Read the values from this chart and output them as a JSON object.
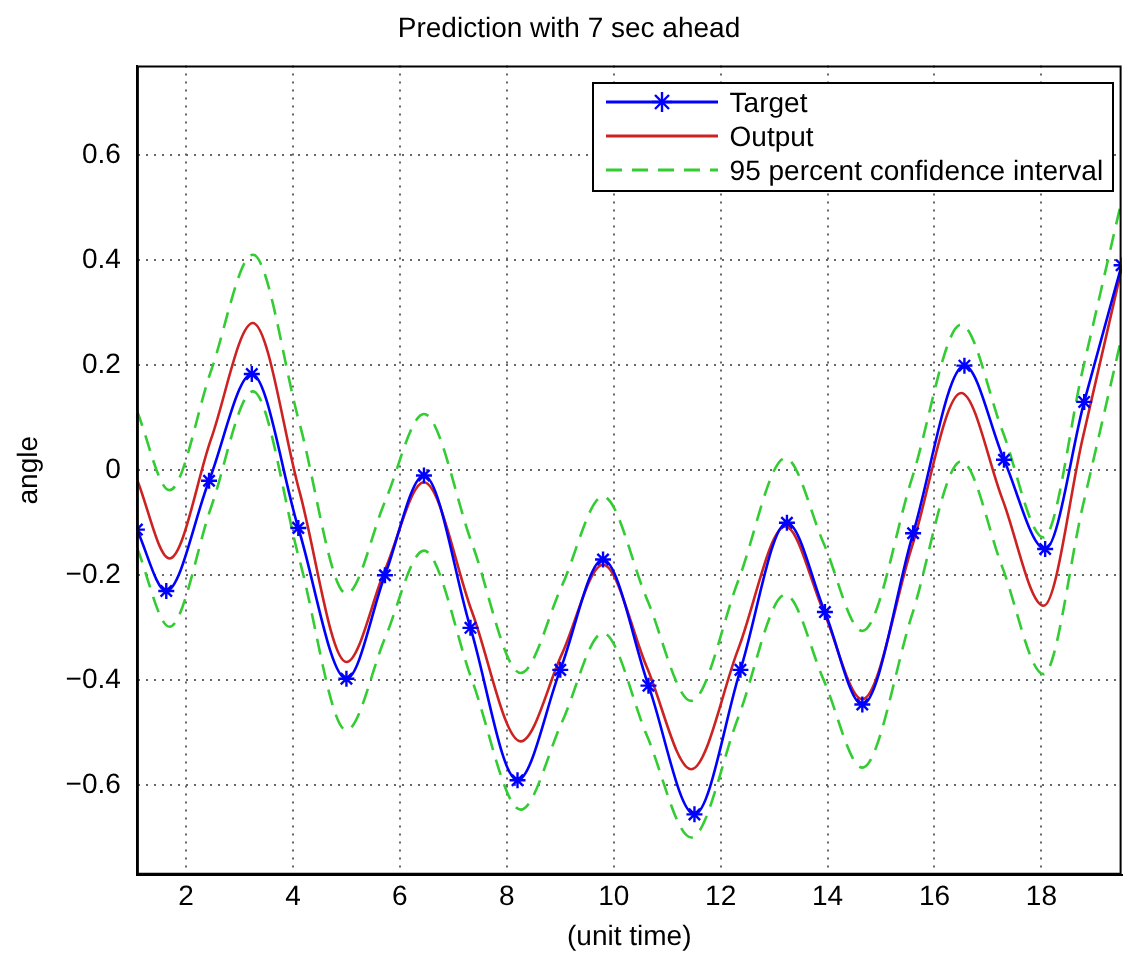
{
  "chart_data": {
    "type": "line",
    "title": "Prediction with 7 sec ahead",
    "xlabel": "(unit time)",
    "ylabel": "angle",
    "xlim": [
      1.08,
      19.5
    ],
    "xticks": [
      2,
      4,
      6,
      8,
      10,
      12,
      14,
      16,
      18
    ],
    "ylim": [
      -0.77,
      0.77
    ],
    "yticks": [
      {
        "value": -0.6,
        "label": "−0.6"
      },
      {
        "value": -0.4,
        "label": "−0.4"
      },
      {
        "value": -0.2,
        "label": "−0.2"
      },
      0,
      0.2,
      0.4,
      0.6
    ],
    "grid": true,
    "legend": "top right",
    "series": [
      {
        "name": "Target",
        "color": "#0000ff",
        "marker": "cross",
        "line_style": "solid",
        "x": [
          1.08,
          1.63,
          2.43,
          3.23,
          4.1,
          5.0,
          5.72,
          6.45,
          7.32,
          8.2,
          9.0,
          9.8,
          10.65,
          11.51,
          12.37,
          13.24,
          13.95,
          14.65,
          15.6,
          16.56,
          17.3,
          18.07,
          18.8,
          19.5
        ],
        "values": [
          -0.113,
          -0.23,
          -0.02,
          0.183,
          -0.11,
          -0.397,
          -0.2,
          -0.01,
          -0.3,
          -0.59,
          -0.38,
          -0.17,
          -0.41,
          -0.655,
          -0.38,
          -0.1,
          -0.27,
          -0.446,
          -0.12,
          0.199,
          0.02,
          -0.15,
          0.13,
          0.39
        ]
      },
      {
        "name": "Output",
        "color": "#cc2222",
        "marker": "none",
        "line_style": "solid",
        "x": [
          1.08,
          1.69,
          2.47,
          3.25,
          4.12,
          5.0,
          5.72,
          6.45,
          7.35,
          8.26,
          9.03,
          9.8,
          10.62,
          11.45,
          12.33,
          13.21,
          13.93,
          14.65,
          15.58,
          16.5,
          17.27,
          18.04,
          18.77,
          19.5
        ],
        "values": [
          -0.017,
          -0.168,
          0.06,
          0.28,
          -0.04,
          -0.365,
          -0.19,
          -0.023,
          -0.27,
          -0.516,
          -0.35,
          -0.18,
          -0.375,
          -0.569,
          -0.34,
          -0.107,
          -0.27,
          -0.436,
          -0.145,
          0.147,
          -0.055,
          -0.258,
          0.06,
          0.383
        ]
      },
      {
        "name": "95 percent confidence interval",
        "color": "#33cc33",
        "marker": "none",
        "line_style": "dashed",
        "x": [
          1.08,
          1.69,
          2.47,
          3.25,
          4.12,
          5.0,
          5.72,
          6.45,
          7.35,
          8.26,
          9.03,
          9.8,
          10.62,
          11.45,
          12.33,
          13.21,
          13.93,
          14.65,
          15.58,
          16.5,
          17.27,
          18.04,
          18.77,
          19.5
        ],
        "values": [
          0.113,
          -0.038,
          0.19,
          0.41,
          0.09,
          -0.235,
          -0.06,
          0.107,
          -0.14,
          -0.386,
          -0.22,
          -0.05,
          -0.245,
          -0.439,
          -0.21,
          0.023,
          -0.14,
          -0.306,
          -0.015,
          0.277,
          0.075,
          -0.128,
          0.19,
          0.513
        ]
      },
      {
        "color": "#33cc33",
        "marker": "none",
        "line_style": "dashed",
        "x": [
          1.08,
          1.69,
          2.47,
          3.25,
          4.12,
          5.0,
          5.72,
          6.45,
          7.35,
          8.26,
          9.03,
          9.8,
          10.62,
          11.45,
          12.33,
          13.21,
          13.93,
          14.65,
          15.58,
          16.5,
          17.27,
          18.04,
          18.77,
          19.5
        ],
        "values": [
          -0.147,
          -0.298,
          -0.07,
          0.15,
          -0.17,
          -0.495,
          -0.32,
          -0.153,
          -0.4,
          -0.646,
          -0.48,
          -0.31,
          -0.505,
          -0.699,
          -0.47,
          -0.237,
          -0.4,
          -0.566,
          -0.275,
          0.017,
          -0.185,
          -0.388,
          -0.07,
          0.253
        ]
      }
    ]
  }
}
